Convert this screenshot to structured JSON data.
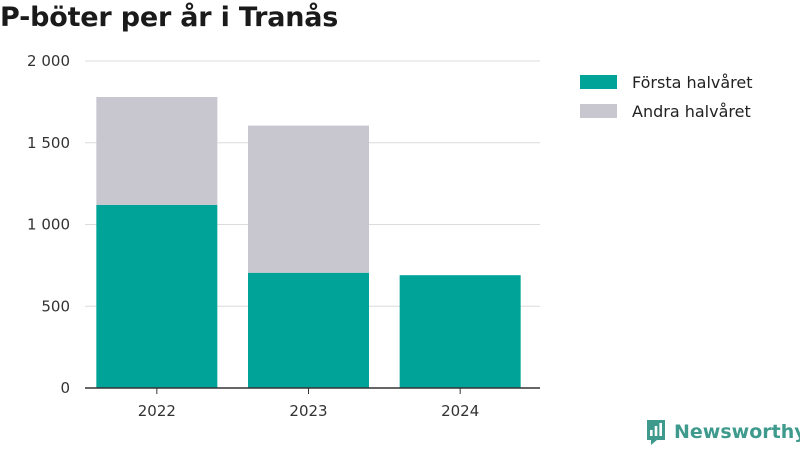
{
  "title": "P-böter per år i Tranås",
  "chart_data": {
    "type": "bar",
    "stacked": true,
    "categories": [
      "2022",
      "2023",
      "2024"
    ],
    "series": [
      {
        "name": "Första halvåret",
        "color": "#00a398",
        "values": [
          1120,
          705,
          690
        ]
      },
      {
        "name": "Andra halvåret",
        "color": "#c8c6cf",
        "values": [
          660,
          900,
          0
        ]
      }
    ],
    "ylim": [
      0,
      2000
    ],
    "yticks": [
      0,
      500,
      1000,
      1500,
      2000
    ],
    "ytick_labels": [
      "0",
      "500",
      "1 000",
      "1 500",
      "2 000"
    ],
    "grid": true,
    "legend": "right"
  },
  "brand": {
    "name": "Newsworthy",
    "icon": "newsworthy-logo-icon"
  }
}
